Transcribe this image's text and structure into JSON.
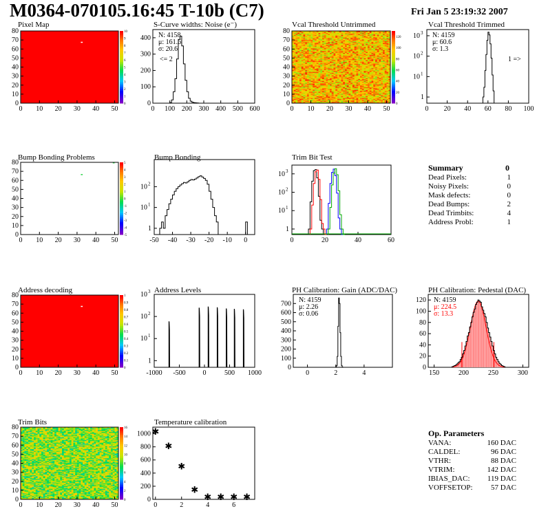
{
  "header": {
    "title": "M0364-070105.16:45 T-10b (C7)",
    "date": "Fri Jan  5 23:19:32 2007"
  },
  "chart_data": [
    {
      "id": "pixel_map",
      "type": "heatmap",
      "title": "Pixel Map",
      "xlim": [
        0,
        52
      ],
      "ylim": [
        0,
        80
      ],
      "xticks": [
        0,
        10,
        20,
        30,
        40,
        50
      ],
      "yticks": [
        0,
        10,
        20,
        30,
        40,
        50,
        60,
        70,
        80
      ],
      "fill": "uniform",
      "base_value": 10,
      "scale": [
        0,
        10
      ],
      "palette_ticks": [
        0,
        1,
        2,
        3,
        4,
        5,
        6,
        7,
        8,
        9,
        10
      ],
      "special_cells": [
        {
          "col": 32,
          "row": 67,
          "value": 0,
          "color": "#ffffff"
        }
      ]
    },
    {
      "id": "scurve",
      "type": "histogram",
      "title": "S-Curve widths: Noise (e⁻)",
      "xlim": [
        0,
        600
      ],
      "ylim": [
        0,
        450
      ],
      "log": false,
      "xticks": [
        0,
        100,
        200,
        300,
        400,
        500,
        600
      ],
      "yticks": [
        0,
        100,
        200,
        300,
        400
      ],
      "stats": [
        "N: 4158",
        "μ: 161.6",
        "σ: 20.6"
      ],
      "note": "<= 2",
      "series": [
        {
          "color": "#000000",
          "x": [
            100,
            110,
            120,
            130,
            140,
            150,
            160,
            170,
            180,
            190,
            200,
            210,
            220,
            230,
            240,
            250,
            260,
            270
          ],
          "values": [
            3,
            20,
            70,
            150,
            270,
            390,
            410,
            350,
            240,
            140,
            70,
            30,
            12,
            6,
            3,
            2,
            1,
            0
          ]
        }
      ]
    },
    {
      "id": "vcal_untrimmed",
      "type": "heatmap",
      "title": "Vcal Threshold Untrimmed",
      "xlim": [
        0,
        52
      ],
      "ylim": [
        0,
        80
      ],
      "xticks": [
        0,
        10,
        20,
        30,
        40,
        50
      ],
      "yticks": [
        0,
        10,
        20,
        30,
        40,
        50,
        60,
        70,
        80
      ],
      "fill": "noisy",
      "scale": [
        0,
        130
      ],
      "value_range": [
        70,
        125
      ],
      "palette_ticks": [
        0,
        20,
        40,
        60,
        80,
        100,
        120
      ]
    },
    {
      "id": "vcal_trimmed",
      "type": "histogram",
      "title": "Vcal Threshold Trimmed",
      "xlim": [
        0,
        100
      ],
      "ylim": [
        0.5,
        2000
      ],
      "log": true,
      "xticks": [
        0,
        20,
        40,
        60,
        80,
        100
      ],
      "yticks": [
        1,
        10,
        100,
        1000
      ],
      "stats": [
        "N: 4159",
        "μ: 60.6",
        "σ:  1.3"
      ],
      "note": "1 =>",
      "series": [
        {
          "color": "#000000",
          "x": [
            55,
            56,
            57,
            58,
            59,
            60,
            61,
            62,
            63,
            64,
            65,
            66
          ],
          "values": [
            1,
            3,
            20,
            120,
            600,
            1500,
            1100,
            400,
            80,
            12,
            2,
            0
          ]
        }
      ]
    },
    {
      "id": "bump_problems",
      "type": "heatmap",
      "title": "Bump Bonding Problems",
      "xlim": [
        0,
        52
      ],
      "ylim": [
        0,
        80
      ],
      "xticks": [
        0,
        10,
        20,
        30,
        40,
        50
      ],
      "yticks": [
        0,
        10,
        20,
        30,
        40,
        50,
        60,
        70,
        80
      ],
      "fill": "empty",
      "scale": [
        -5,
        5
      ],
      "palette_ticks": [
        -5,
        -4,
        -3,
        -2,
        -1,
        0,
        1,
        2,
        3,
        4,
        5
      ],
      "special_cells": [
        {
          "col": 32,
          "row": 66,
          "value": 1,
          "color": "#2dd44b"
        },
        {
          "col": 49,
          "row": 79,
          "value": 1,
          "color": "#2dd44b"
        }
      ]
    },
    {
      "id": "bump_bonding",
      "type": "histogram",
      "title": "Bump Bonding",
      "xlim": [
        -50,
        5
      ],
      "ylim": [
        0.5,
        2000
      ],
      "log": true,
      "xticks": [
        -50,
        -40,
        -30,
        -20,
        -10,
        0
      ],
      "yticks": [
        1,
        10,
        100
      ],
      "series": [
        {
          "color": "#000000",
          "x": [
            -47,
            -46,
            -45,
            -44,
            -43,
            -42,
            -41,
            -40,
            -39,
            -38,
            -37,
            -36,
            -35,
            -34,
            -33,
            -32,
            -31,
            -30,
            -29,
            -28,
            -27,
            -26,
            -25,
            -24,
            -23,
            -22,
            -21,
            -20,
            -19,
            -18,
            -17,
            -16,
            -15,
            -14,
            -13,
            -12,
            -11,
            -10,
            -9,
            -8,
            -7,
            -6,
            -5,
            -4,
            -3,
            -2,
            -1,
            0,
            1
          ],
          "values": [
            1,
            2,
            1,
            4,
            8,
            15,
            25,
            40,
            60,
            80,
            100,
            120,
            140,
            160,
            150,
            170,
            200,
            220,
            210,
            230,
            260,
            300,
            330,
            290,
            250,
            200,
            130,
            60,
            25,
            10,
            4,
            2,
            0,
            0,
            0,
            0,
            0,
            0,
            0,
            0,
            0,
            0,
            0,
            0,
            0,
            0,
            0,
            2,
            0
          ]
        }
      ]
    },
    {
      "id": "trim_bit_test",
      "type": "histogram",
      "title": "Trim Bit Test",
      "xlim": [
        0,
        60
      ],
      "ylim": [
        0.5,
        3000
      ],
      "log": true,
      "xticks": [
        0,
        20,
        40,
        60
      ],
      "yticks": [
        1,
        10,
        100,
        1000
      ],
      "series": [
        {
          "color": "#000000",
          "x": [
            10,
            11,
            12,
            13,
            14,
            15,
            16,
            17,
            18,
            19
          ],
          "values": [
            1,
            30,
            400,
            1500,
            1700,
            600,
            60,
            3,
            1,
            0
          ]
        },
        {
          "color": "#ff0000",
          "x": [
            11,
            12,
            13,
            14,
            15,
            16,
            17,
            18,
            19,
            20
          ],
          "values": [
            1,
            20,
            300,
            1300,
            1600,
            500,
            40,
            2,
            1,
            0
          ]
        },
        {
          "color": "#0000ff",
          "x": [
            21,
            22,
            23,
            24,
            25,
            26,
            27,
            28,
            29,
            30
          ],
          "values": [
            1,
            25,
            300,
            1200,
            1800,
            800,
            90,
            4,
            1,
            0
          ]
        },
        {
          "color": "#00aa00",
          "x": [
            22,
            23,
            24,
            25,
            26,
            27,
            28,
            29,
            30,
            31
          ],
          "values": [
            1,
            15,
            250,
            1100,
            1900,
            900,
            120,
            6,
            1,
            0
          ]
        }
      ]
    },
    {
      "id": "address_decoding",
      "type": "heatmap",
      "title": "Address decoding",
      "xlim": [
        0,
        52
      ],
      "ylim": [
        0,
        80
      ],
      "xticks": [
        0,
        10,
        20,
        30,
        40,
        50
      ],
      "yticks": [
        0,
        10,
        20,
        30,
        40,
        50,
        60,
        70,
        80
      ],
      "fill": "uniform",
      "base_value": 1,
      "scale": [
        0,
        1
      ],
      "palette_ticks": [
        0,
        0.1,
        0.2,
        0.3,
        0.4,
        0.5,
        0.6,
        0.7,
        0.8,
        0.9,
        1
      ],
      "special_cells": [
        {
          "col": 32,
          "row": 67,
          "value": 0,
          "color": "#ffffff"
        }
      ]
    },
    {
      "id": "address_levels",
      "type": "histogram",
      "title": "Address Levels",
      "xlim": [
        -1000,
        1000
      ],
      "ylim": [
        0.5,
        1000
      ],
      "log": true,
      "xticks": [
        -1000,
        -500,
        0,
        500,
        1000
      ],
      "yticks": [
        1,
        10,
        100,
        1000
      ],
      "peaks": [
        -700,
        -100,
        80,
        260,
        440,
        600,
        780
      ],
      "peak_heights": [
        60,
        250,
        280,
        260,
        230,
        220,
        210
      ]
    },
    {
      "id": "ph_gain",
      "type": "histogram",
      "title": "PH Calibration: Gain (ADC/DAC)",
      "xlim": [
        -1,
        6
      ],
      "ylim": [
        0,
        800
      ],
      "log": false,
      "xticks": [
        0,
        2,
        4
      ],
      "yticks": [
        0,
        100,
        200,
        300,
        400,
        500,
        600,
        700
      ],
      "stats": [
        "N: 4159",
        "μ: 2.26",
        "σ: 0.06"
      ],
      "series": [
        {
          "color": "#000000",
          "x": [
            2.0,
            2.05,
            2.1,
            2.15,
            2.2,
            2.25,
            2.3,
            2.35,
            2.4,
            2.45,
            2.5
          ],
          "values": [
            2,
            20,
            120,
            450,
            760,
            700,
            380,
            120,
            20,
            3,
            0
          ]
        }
      ]
    },
    {
      "id": "ph_pedestal",
      "type": "histogram",
      "title": "PH Calibration: Pedestal (DAC)",
      "xlim": [
        140,
        310
      ],
      "ylim": [
        0,
        130
      ],
      "log": false,
      "xticks": [
        150,
        200,
        250,
        300
      ],
      "yticks": [
        0,
        20,
        40,
        60,
        80,
        100,
        120
      ],
      "stats": [
        "N: 4159",
        "μ: 224.5",
        "σ: 13.3"
      ],
      "stats_colors": [
        "#000000",
        "#ff0000",
        "#ff0000"
      ],
      "fit": {
        "color": "#ff0000",
        "mean": 224.5,
        "sigma": 13.3,
        "peak": 118,
        "cut_lines": [
          197,
          251
        ]
      },
      "series": [
        {
          "color": "#000000",
          "x": [
            180,
            182,
            184,
            186,
            188,
            190,
            192,
            194,
            196,
            198,
            200,
            202,
            204,
            206,
            208,
            210,
            212,
            214,
            216,
            218,
            220,
            222,
            224,
            226,
            228,
            230,
            232,
            234,
            236,
            238,
            240,
            242,
            244,
            246,
            248,
            250,
            252,
            254,
            256,
            258,
            260,
            262,
            264,
            266,
            268,
            270
          ],
          "values": [
            1,
            2,
            3,
            4,
            6,
            8,
            10,
            14,
            18,
            24,
            30,
            38,
            46,
            56,
            62,
            72,
            80,
            90,
            98,
            104,
            112,
            116,
            120,
            118,
            116,
            108,
            102,
            96,
            90,
            80,
            70,
            62,
            54,
            46,
            38,
            30,
            24,
            18,
            14,
            10,
            7,
            5,
            3,
            2,
            1,
            0
          ]
        }
      ]
    },
    {
      "id": "trim_bits",
      "type": "heatmap",
      "title": "Trim Bits",
      "xlim": [
        0,
        52
      ],
      "ylim": [
        0,
        80
      ],
      "xticks": [
        0,
        10,
        20,
        30,
        40,
        50
      ],
      "yticks": [
        0,
        10,
        20,
        30,
        40,
        50,
        60,
        70,
        80
      ],
      "fill": "noisy",
      "scale": [
        0,
        16
      ],
      "value_range": [
        6,
        12
      ],
      "palette_ticks": [
        0,
        2,
        4,
        6,
        8,
        10,
        12,
        14,
        16
      ]
    },
    {
      "id": "temperature_calibration",
      "type": "scatter",
      "title": "Temperature calibration",
      "xlim": [
        -0.2,
        7.6
      ],
      "ylim": [
        0,
        1100
      ],
      "log": false,
      "xticks": [
        0,
        2,
        4,
        6
      ],
      "yticks": [
        0,
        200,
        400,
        600,
        800,
        1000
      ],
      "points": [
        {
          "x": 0,
          "y": 1050
        },
        {
          "x": 1,
          "y": 830
        },
        {
          "x": 2,
          "y": 520
        },
        {
          "x": 3,
          "y": 160
        },
        {
          "x": 4,
          "y": 50
        },
        {
          "x": 5,
          "y": 50
        },
        {
          "x": 6,
          "y": 50
        },
        {
          "x": 7,
          "y": 50
        }
      ]
    }
  ],
  "summary": {
    "title": "Summary",
    "total": "0",
    "rows": [
      {
        "label": "Dead Pixels:",
        "value": "1"
      },
      {
        "label": "Noisy Pixels:",
        "value": "0"
      },
      {
        "label": "Mask defects:",
        "value": "0"
      },
      {
        "label": "Dead Bumps:",
        "value": "2"
      },
      {
        "label": "Dead Trimbits:",
        "value": "4"
      },
      {
        "label": "Address Probl:",
        "value": "1"
      }
    ]
  },
  "op_parameters": {
    "title": "Op. Parameters",
    "rows": [
      {
        "label": "VANA:",
        "value": "160 DAC"
      },
      {
        "label": "CALDEL:",
        "value": "96 DAC"
      },
      {
        "label": "VTHR:",
        "value": "88 DAC"
      },
      {
        "label": "VTRIM:",
        "value": "142 DAC"
      },
      {
        "label": "IBIAS_DAC:",
        "value": "119 DAC"
      },
      {
        "label": "VOFFSETOP:",
        "value": "57 DAC"
      }
    ]
  }
}
